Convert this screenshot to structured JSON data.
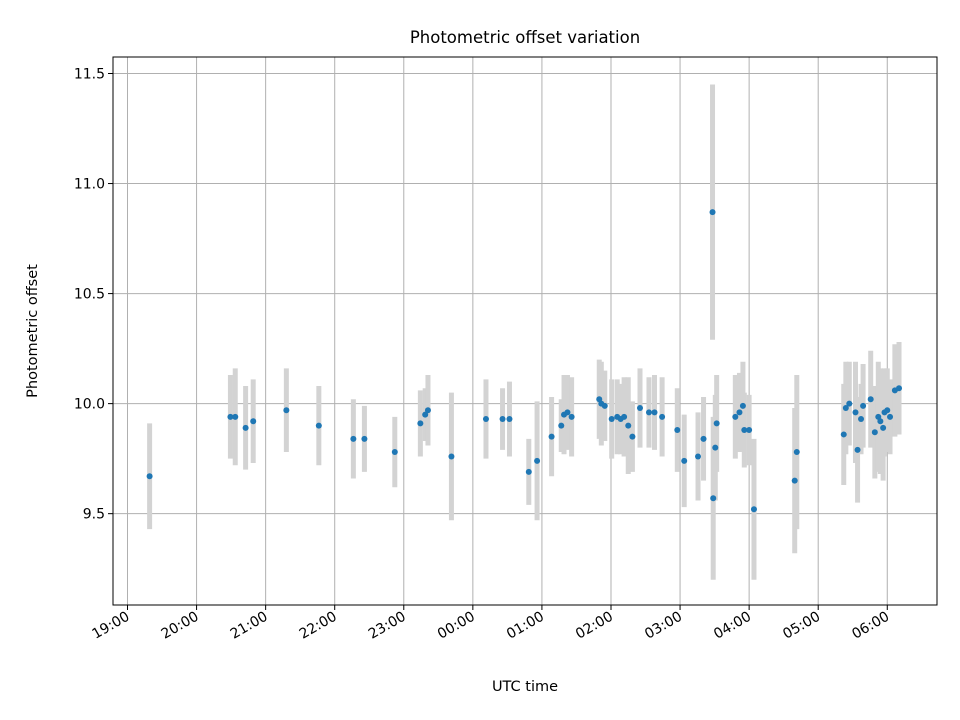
{
  "chart_data": {
    "type": "scatter",
    "title": "Photometric offset variation",
    "xlabel": "UTC time",
    "ylabel": "Photometric offset",
    "x_ticks": [
      "19:00",
      "20:00",
      "21:00",
      "22:00",
      "23:00",
      "00:00",
      "01:00",
      "02:00",
      "03:00",
      "04:00",
      "05:00",
      "06:00"
    ],
    "y_ticks": [
      "9.5",
      "10.0",
      "10.5",
      "11.0",
      "11.5"
    ],
    "x_tick_hours": [
      19,
      20,
      21,
      22,
      23,
      24,
      25,
      26,
      27,
      28,
      29,
      30
    ],
    "y_tick_values": [
      9.5,
      10.0,
      10.5,
      11.0,
      11.5
    ],
    "xlim_hours": [
      18.79,
      30.72
    ],
    "ylim": [
      9.085,
      11.575
    ],
    "grid": true,
    "series": [
      {
        "marker_color": "#1f77b4",
        "errorbar_color": "#d3d3d3",
        "x_hours": [
          19.32,
          20.49,
          20.56,
          20.71,
          20.82,
          21.3,
          21.77,
          22.27,
          22.43,
          22.87,
          23.24,
          23.31,
          23.35,
          23.69,
          24.19,
          24.43,
          24.53,
          24.81,
          24.93,
          25.14,
          25.28,
          25.32,
          25.37,
          25.43,
          25.83,
          25.86,
          25.91,
          26.01,
          26.09,
          26.14,
          26.19,
          26.25,
          26.31,
          26.42,
          26.55,
          26.63,
          26.74,
          26.96,
          27.06,
          27.26,
          27.34,
          27.47,
          27.48,
          27.51,
          27.53,
          27.8,
          27.86,
          27.91,
          27.93,
          28.0,
          28.07,
          28.66,
          28.69,
          29.37,
          29.4,
          29.45,
          29.54,
          29.57,
          29.62,
          29.65,
          29.76,
          29.82,
          29.87,
          29.9,
          29.94,
          29.96,
          30.0,
          30.04,
          30.11,
          30.17
        ],
        "y": [
          9.67,
          9.94,
          9.94,
          9.89,
          9.92,
          9.97,
          9.9,
          9.84,
          9.84,
          9.78,
          9.91,
          9.95,
          9.97,
          9.76,
          9.93,
          9.93,
          9.93,
          9.69,
          9.74,
          9.85,
          9.9,
          9.95,
          9.96,
          9.94,
          10.02,
          10.0,
          9.99,
          9.93,
          9.94,
          9.93,
          9.94,
          9.9,
          9.85,
          9.98,
          9.96,
          9.96,
          9.94,
          9.88,
          9.74,
          9.76,
          9.84,
          10.87,
          9.57,
          9.8,
          9.91,
          9.94,
          9.96,
          9.99,
          9.88,
          9.88,
          9.52,
          9.65,
          9.78,
          9.86,
          9.98,
          10.0,
          9.96,
          9.79,
          9.93,
          9.99,
          10.02,
          9.87,
          9.94,
          9.92,
          9.89,
          9.96,
          9.97,
          9.94,
          10.06,
          10.07
        ],
        "y_err": [
          0.24,
          0.19,
          0.22,
          0.19,
          0.19,
          0.19,
          0.18,
          0.18,
          0.15,
          0.16,
          0.15,
          0.12,
          0.16,
          0.29,
          0.18,
          0.14,
          0.17,
          0.15,
          0.27,
          0.18,
          0.12,
          0.18,
          0.17,
          0.18,
          0.18,
          0.19,
          0.16,
          0.18,
          0.17,
          0.16,
          0.18,
          0.22,
          0.16,
          0.18,
          0.16,
          0.17,
          0.18,
          0.19,
          0.21,
          0.2,
          0.19,
          0.58,
          0.37,
          0.24,
          0.22,
          0.19,
          0.18,
          0.2,
          0.17,
          0.16,
          0.32,
          0.33,
          0.35,
          0.23,
          0.21,
          0.19,
          0.23,
          0.24,
          0.16,
          0.19,
          0.22,
          0.21,
          0.25,
          0.24,
          0.24,
          0.2,
          0.19,
          0.17,
          0.21,
          0.21
        ]
      }
    ]
  }
}
